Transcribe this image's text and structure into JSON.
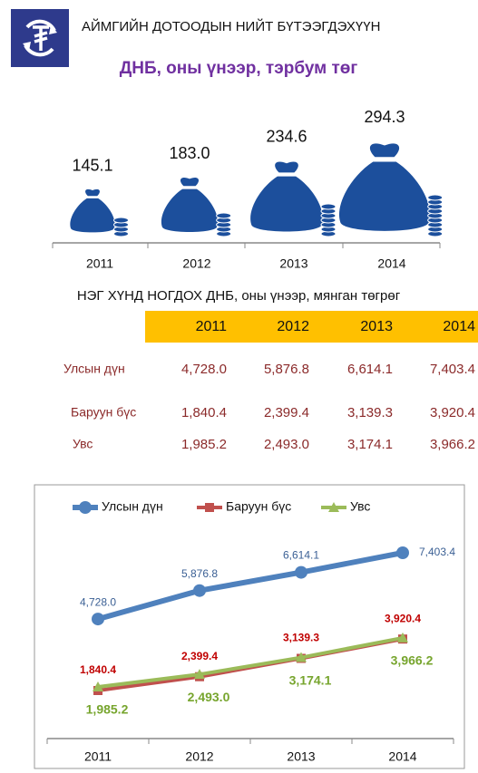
{
  "header": {
    "title": "АЙМГИЙН ДОТООДЫН НИЙТ БҮТЭЭГДЭХҮҮН"
  },
  "chart_data": [
    {
      "type": "pictograph",
      "title": "ДНБ, оны үнээр, тэрбум төг",
      "categories": [
        "2011",
        "2012",
        "2013",
        "2014"
      ],
      "values": [
        145.1,
        183.0,
        234.6,
        294.3
      ],
      "value_labels": [
        "145.1",
        "183.0",
        "234.6",
        "294.3"
      ],
      "color": "#1c4f9c"
    },
    {
      "type": "line",
      "categories": [
        "2011",
        "2012",
        "2013",
        "2014"
      ],
      "series": [
        {
          "name": "Улсын дүн",
          "color": "#4f81bd",
          "values": [
            4728.0,
            5876.8,
            6614.1,
            7403.4
          ],
          "value_labels": [
            "4,728.0",
            "5,876.8",
            "6,614.1",
            "7,403.4"
          ]
        },
        {
          "name": "Баруун бүс",
          "color": "#c0504d",
          "values": [
            1840.4,
            2399.4,
            3139.3,
            3920.4
          ],
          "value_labels": [
            "1,840.4",
            "2,399.4",
            "3,139.3",
            "3,920.4"
          ]
        },
        {
          "name": "Увс",
          "color": "#9bbb59",
          "values": [
            1985.2,
            2493.0,
            3174.1,
            3966.2
          ],
          "value_labels": [
            "1,985.2",
            "2,493.0",
            "3,174.1",
            "3,966.2"
          ]
        }
      ],
      "legend": "top"
    }
  ],
  "table": {
    "title": "НЭГ ХҮНД НОГДОХ ДНБ, оны үнээр, мянган төгрөг",
    "columns": [
      "2011",
      "2012",
      "2013",
      "2014"
    ],
    "rows": [
      {
        "label": "Улсын дүн",
        "cells": [
          "4,728.0",
          "5,876.8",
          "6,614.1",
          "7,403.4"
        ]
      },
      {
        "label": "Баруун бүс",
        "cells": [
          "1,840.4",
          "2,399.4",
          "3,139.3",
          "3,920.4"
        ]
      },
      {
        "label": "Увс",
        "cells": [
          "1,985.2",
          "2,493.0",
          "3,174.1",
          "3,966.2"
        ]
      }
    ]
  }
}
